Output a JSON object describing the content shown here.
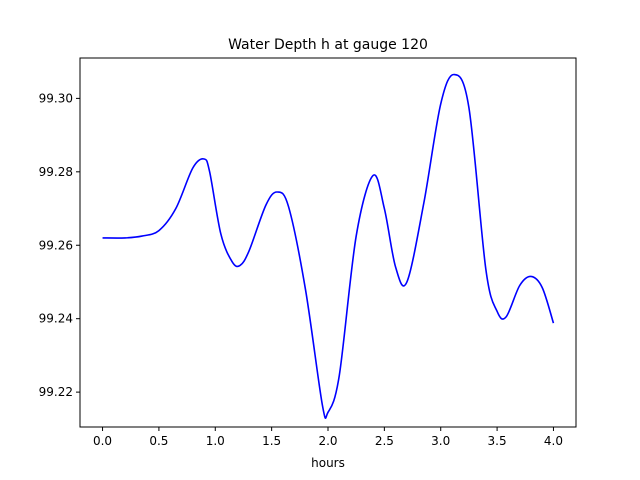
{
  "chart_data": {
    "type": "line",
    "title": "Water Depth h at gauge 120",
    "xlabel": "hours",
    "ylabel": "",
    "xlim": [
      -0.2,
      4.2
    ],
    "ylim": [
      99.2105,
      99.311
    ],
    "xticks": [
      0.0,
      0.5,
      1.0,
      1.5,
      2.0,
      2.5,
      3.0,
      3.5,
      4.0
    ],
    "xtick_labels": [
      "0.0",
      "0.5",
      "1.0",
      "1.5",
      "2.0",
      "2.5",
      "3.0",
      "3.5",
      "4.0"
    ],
    "yticks": [
      99.22,
      99.24,
      99.26,
      99.28,
      99.3
    ],
    "ytick_labels": [
      "99.22",
      "99.24",
      "99.26",
      "99.28",
      "99.30"
    ],
    "grid": false,
    "legend": "none",
    "series": [
      {
        "color": "#0000ff",
        "x": [
          0.0,
          0.2,
          0.35,
          0.5,
          0.65,
          0.8,
          0.9,
          0.95,
          1.05,
          1.15,
          1.22,
          1.3,
          1.45,
          1.55,
          1.65,
          1.8,
          1.95,
          2.0,
          2.1,
          2.25,
          2.4,
          2.5,
          2.6,
          2.7,
          2.85,
          3.0,
          3.12,
          3.25,
          3.4,
          3.5,
          3.58,
          3.7,
          3.8,
          3.9,
          4.0
        ],
        "y": [
          99.262,
          99.262,
          99.2625,
          99.264,
          99.27,
          99.281,
          99.2835,
          99.28,
          99.263,
          99.2555,
          99.2545,
          99.2585,
          99.271,
          99.2745,
          99.2705,
          99.248,
          99.2165,
          99.2145,
          99.2245,
          99.2625,
          99.279,
          99.27,
          99.254,
          99.25,
          99.2715,
          99.2985,
          99.3065,
          99.2975,
          99.2535,
          99.242,
          99.2405,
          99.249,
          99.2515,
          99.2485,
          99.2388
        ]
      }
    ]
  }
}
